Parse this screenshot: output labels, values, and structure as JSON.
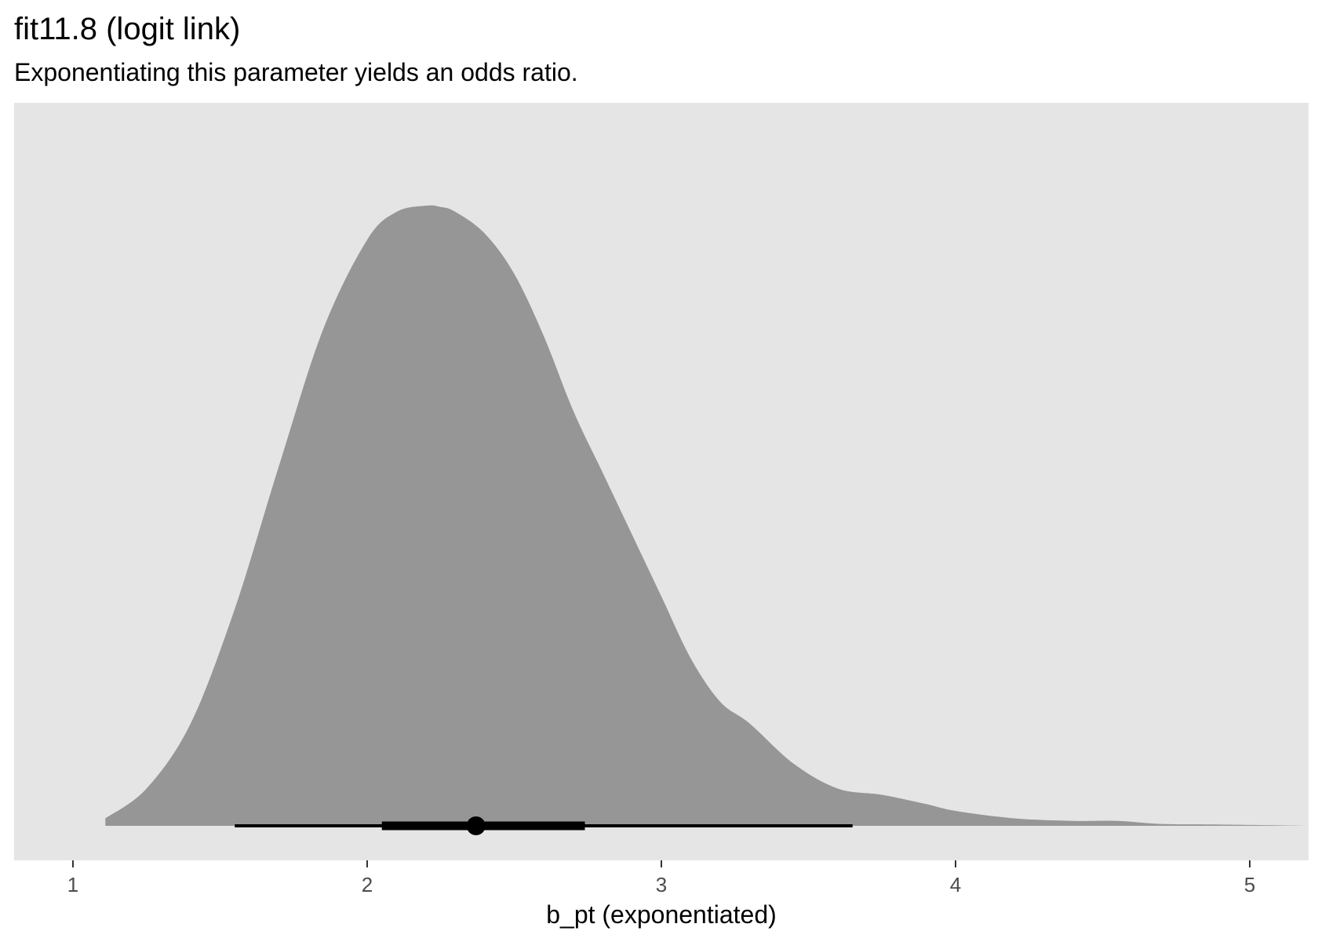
{
  "chart_data": {
    "type": "area",
    "title": "fit11.8 (logit link)",
    "subtitle": "Exponentiating this parameter yields an odds ratio.",
    "xlabel": "b_pt (exponentiated)",
    "ylabel": "",
    "xlim": [
      0.8,
      5.2
    ],
    "ylim": [
      0,
      1.0
    ],
    "x_ticks": [
      1,
      2,
      3,
      4,
      5
    ],
    "x_tick_labels": [
      "1",
      "2",
      "3",
      "4",
      "5"
    ],
    "y_axis_shown": false,
    "grid": false,
    "density": {
      "x": [
        1.11,
        1.25,
        1.4,
        1.55,
        1.7,
        1.85,
        2.0,
        2.1,
        2.2,
        2.25,
        2.3,
        2.4,
        2.5,
        2.6,
        2.7,
        2.8,
        2.9,
        3.0,
        3.1,
        3.2,
        3.3,
        3.45,
        3.6,
        3.75,
        3.9,
        4.0,
        4.2,
        4.4,
        4.55,
        4.7,
        4.9,
        5.2
      ],
      "y": [
        0.012,
        0.06,
        0.165,
        0.35,
        0.58,
        0.8,
        0.945,
        0.99,
        1.0,
        0.998,
        0.99,
        0.955,
        0.89,
        0.79,
        0.67,
        0.57,
        0.47,
        0.37,
        0.27,
        0.2,
        0.165,
        0.1,
        0.06,
        0.05,
        0.035,
        0.024,
        0.012,
        0.008,
        0.008,
        0.003,
        0.002,
        0.0
      ]
    },
    "point_interval": {
      "point": 2.37,
      "inner_interval": [
        2.05,
        2.74
      ],
      "outer_interval": [
        1.55,
        3.65
      ]
    },
    "colors": {
      "panel_background": "#e5e5e5",
      "density_fill": "#969696",
      "interval": "#000000",
      "tick": "#333333",
      "tick_label": "#4d4d4d"
    }
  }
}
